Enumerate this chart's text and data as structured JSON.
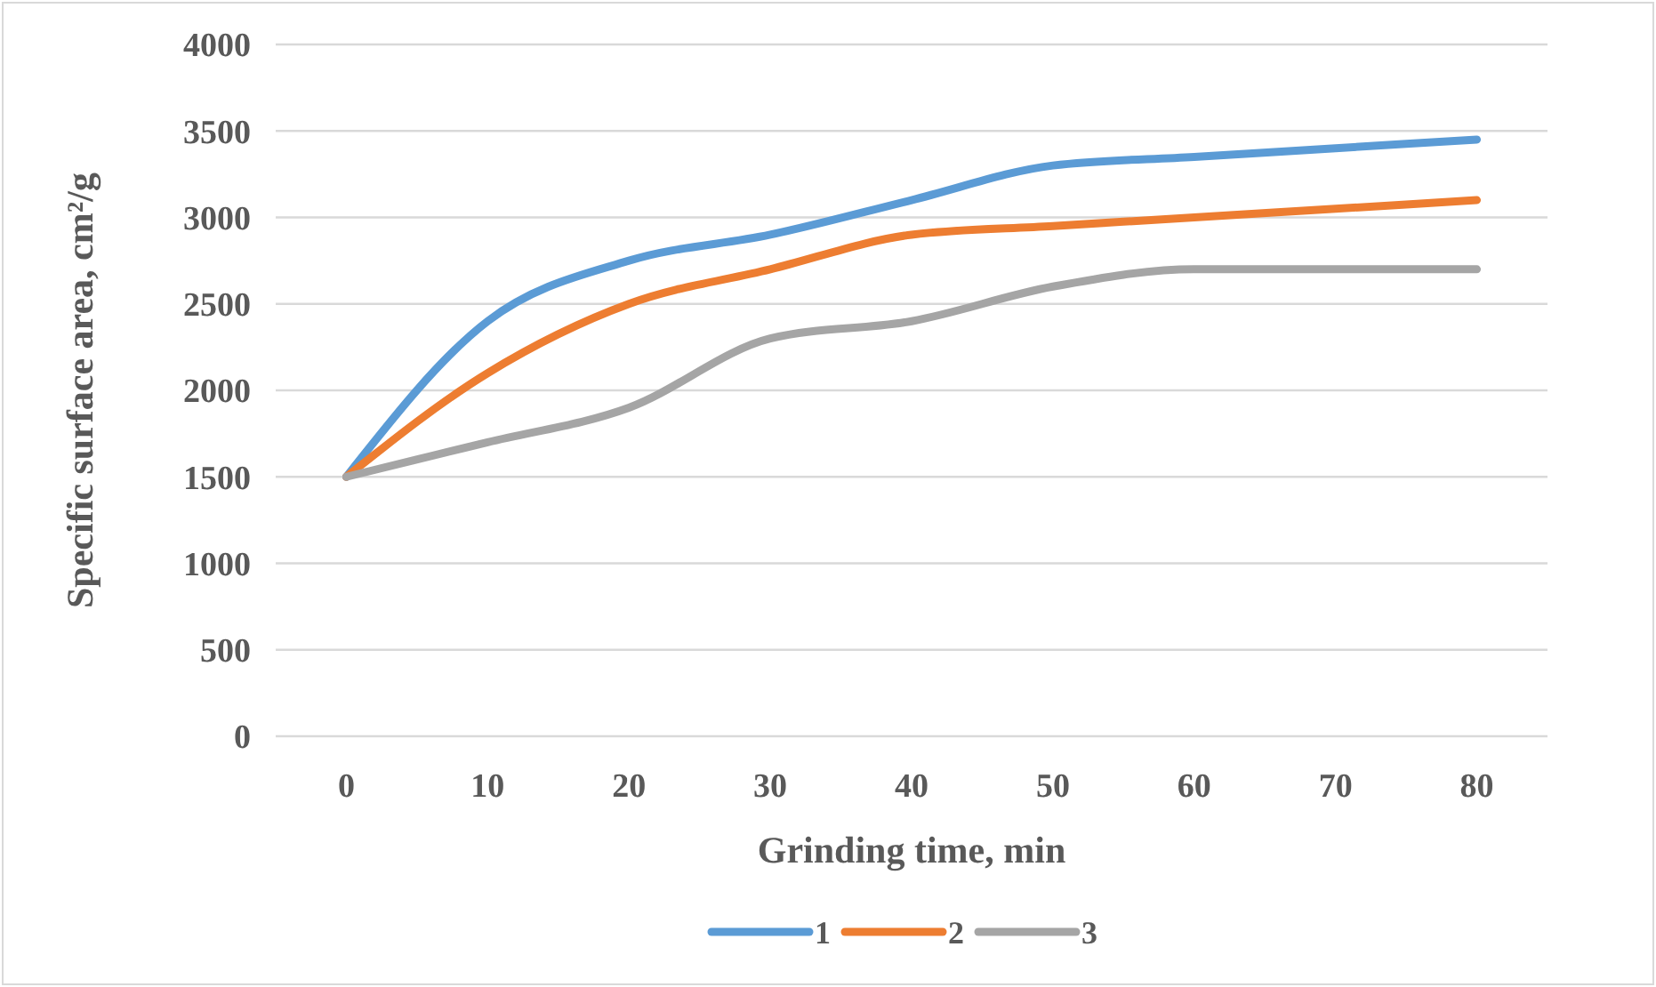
{
  "chart_data": {
    "type": "line",
    "xlabel": "Grinding time, min",
    "ylabel": "Specific surface area, cm²/g",
    "categories": [
      "0",
      "10",
      "20",
      "30",
      "40",
      "50",
      "60",
      "70",
      "80"
    ],
    "series": [
      {
        "name": "1",
        "color": "#5b9bd5",
        "values": [
          1500,
          2400,
          2750,
          2900,
          3100,
          3300,
          3350,
          3400,
          3450
        ]
      },
      {
        "name": "2",
        "color": "#ed7d31",
        "values": [
          1500,
          2100,
          2500,
          2700,
          2900,
          2950,
          3000,
          3050,
          3100
        ]
      },
      {
        "name": "3",
        "color": "#a5a5a5",
        "values": [
          1500,
          1700,
          1900,
          2300,
          2400,
          2600,
          2700,
          2700,
          2700
        ]
      }
    ],
    "ylim": [
      0,
      4000
    ],
    "yticks": [
      0,
      500,
      1000,
      1500,
      2000,
      2500,
      3000,
      3500,
      4000
    ],
    "grid": "y",
    "legend": "bottom",
    "marker": "none",
    "line_style": "solid"
  }
}
